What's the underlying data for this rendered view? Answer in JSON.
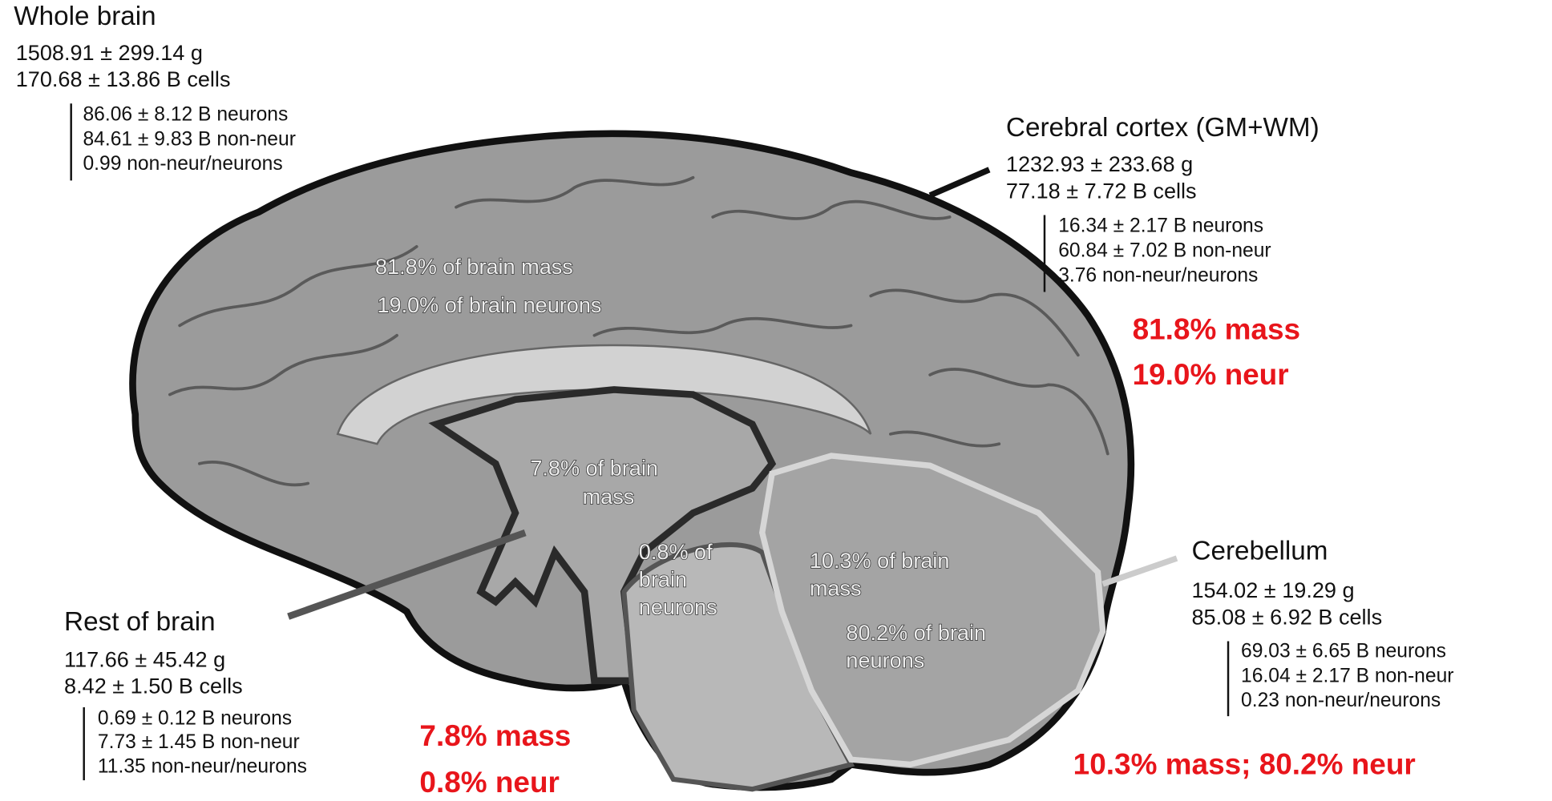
{
  "whole_brain": {
    "title": "Whole brain",
    "mass": "1508.91 ± 299.14 g",
    "cells": "170.68 ± 13.86 B cells",
    "neurons": "86.06 ± 8.12 B neurons",
    "non_neurons": "84.61 ± 9.83 B non-neur",
    "ratio": "0.99 non-neur/neurons"
  },
  "cerebral_cortex": {
    "title": "Cerebral cortex (GM+WM)",
    "mass": "1232.93 ± 233.68 g",
    "cells": "77.18 ± 7.72 B cells",
    "neurons": "16.34 ± 2.17 B neurons",
    "non_neurons": "60.84 ± 7.02 B non-neur",
    "ratio": "3.76 non-neur/neurons"
  },
  "cerebellum": {
    "title": "Cerebellum",
    "mass": "154.02 ± 19.29 g",
    "cells": "85.08 ± 6.92 B cells",
    "neurons": "69.03 ± 6.65 B neurons",
    "non_neurons": "16.04 ± 2.17 B non-neur",
    "ratio": "0.23 non-neur/neurons"
  },
  "rest_of_brain": {
    "title": "Rest of brain",
    "mass": "117.66 ± 45.42 g",
    "cells": "8.42 ± 1.50 B cells",
    "neurons": "0.69 ± 0.12 B neurons",
    "non_neurons": "7.73 ± 1.45 B non-neur",
    "ratio": "11.35 non-neur/neurons"
  },
  "overlay": {
    "cortex_mass": "81.8% of brain mass",
    "cortex_neurons": "19.0% of brain neurons",
    "rest_mass": [
      "7.8% of brain",
      "mass"
    ],
    "rest_neurons": [
      "0.8% of",
      "brain",
      "neurons"
    ],
    "cerebellum_mass": [
      "10.3% of brain",
      "mass"
    ],
    "cerebellum_neurons": [
      "80.2% of brain",
      "neurons"
    ]
  },
  "summary": {
    "cortex": [
      "81.8% mass",
      "19.0% neur"
    ],
    "rest": [
      "7.8% mass",
      "0.8% neur"
    ],
    "cerebellum": "10.3% mass; 80.2% neur"
  }
}
